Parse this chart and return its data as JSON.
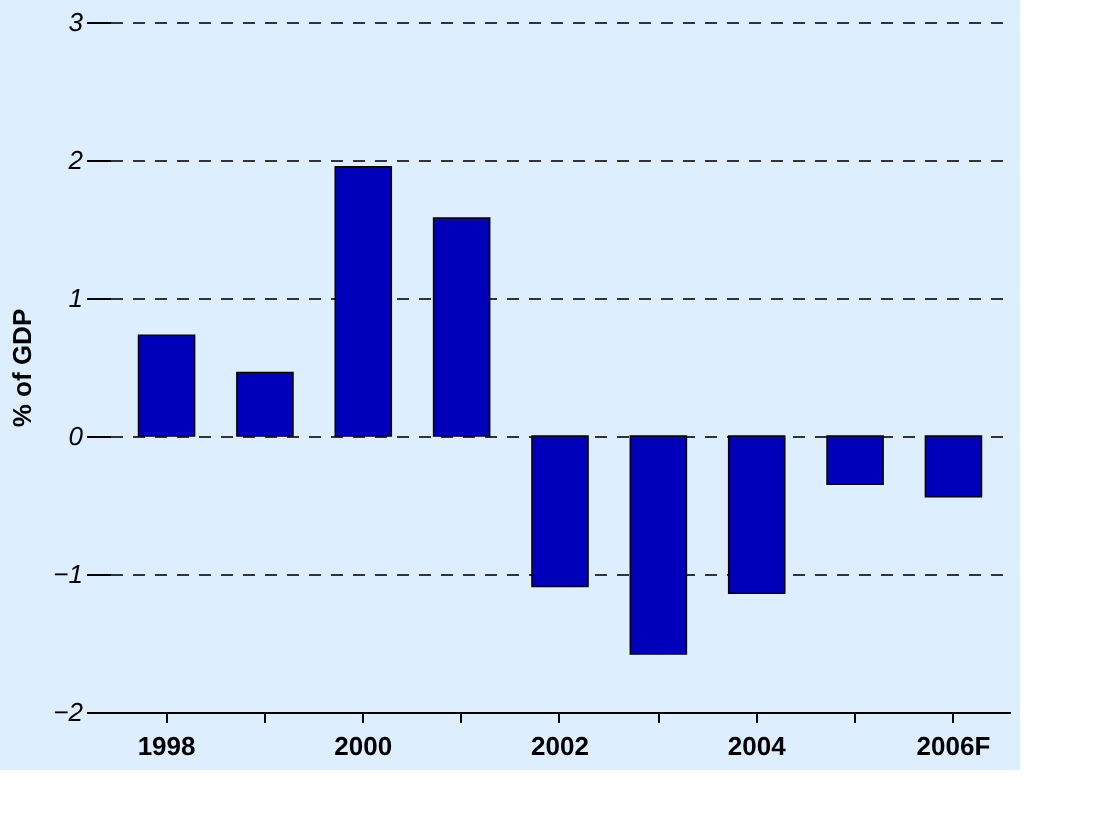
{
  "chart_data": {
    "type": "bar",
    "ylabel": "% of GDP",
    "categories": [
      "1998",
      null,
      "2000",
      null,
      "2002",
      null,
      "2004",
      null,
      "2006F"
    ],
    "values": [
      0.73,
      0.46,
      1.95,
      1.58,
      -1.09,
      -1.58,
      -1.14,
      -0.35,
      -0.44
    ],
    "color": "#0000bb",
    "ylim": [
      -2,
      3
    ],
    "yticks": [
      -2,
      -1,
      0,
      1,
      2,
      3
    ],
    "grid": "y"
  }
}
